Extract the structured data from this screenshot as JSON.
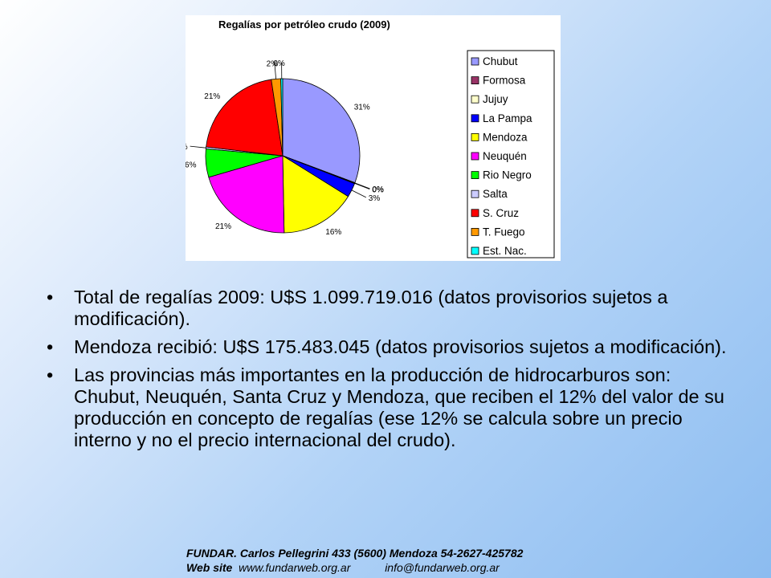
{
  "chart_data": {
    "type": "pie",
    "title": "Regalías por petróleo crudo (2009)",
    "slices": [
      {
        "name": "Chubut",
        "value": 31,
        "label": "31%",
        "color": "#9999ff"
      },
      {
        "name": "Formosa",
        "value": 0.1,
        "label": "0%",
        "color": "#993366"
      },
      {
        "name": "Jujuy",
        "value": 0.1,
        "label": "0%",
        "color": "#ffffcc"
      },
      {
        "name": "La Pampa",
        "value": 3,
        "label": "3%",
        "color": "#0000ff"
      },
      {
        "name": "Mendoza",
        "value": 16,
        "label": "16%",
        "color": "#ffff00"
      },
      {
        "name": "Neuquén",
        "value": 21,
        "label": "21%",
        "color": "#ff00ff"
      },
      {
        "name": "Rio Negro",
        "value": 6,
        "label": "6%",
        "color": "#00ff00"
      },
      {
        "name": "Salta",
        "value": 0.4,
        "label": "0%",
        "color": "#ccccff"
      },
      {
        "name": "S. Cruz",
        "value": 21,
        "label": "21%",
        "color": "#ff0000"
      },
      {
        "name": "T. Fuego",
        "value": 2,
        "label": "2%",
        "color": "#ff9900"
      },
      {
        "name": "Est. Nac.",
        "value": 0.4,
        "label": "0%",
        "color": "#00ffff"
      }
    ],
    "legend_position": "right"
  },
  "bullets": [
    "Total de regalías 2009: U$S 1.099.719.016 (datos provisorios sujetos a modificación).",
    "Mendoza recibió: U$S 175.483.045 (datos provisorios sujetos a modificación).",
    "Las provincias más importantes en la producción de hidrocarburos son: Chubut, Neuquén, Santa Cruz y Mendoza, que reciben el 12% del valor de su  producción en concepto de regalías (ese 12% se calcula sobre un precio interno y no el precio internacional del crudo)."
  ],
  "bullet_symbol": "•",
  "footer": {
    "line1": "FUNDAR.  Carlos Pellegrini 433  (5600) Mendoza   54-2627-425782",
    "web_label": "Web site",
    "web_url": "www.fundarweb.org.ar",
    "email": "info@fundarweb.org.ar"
  }
}
